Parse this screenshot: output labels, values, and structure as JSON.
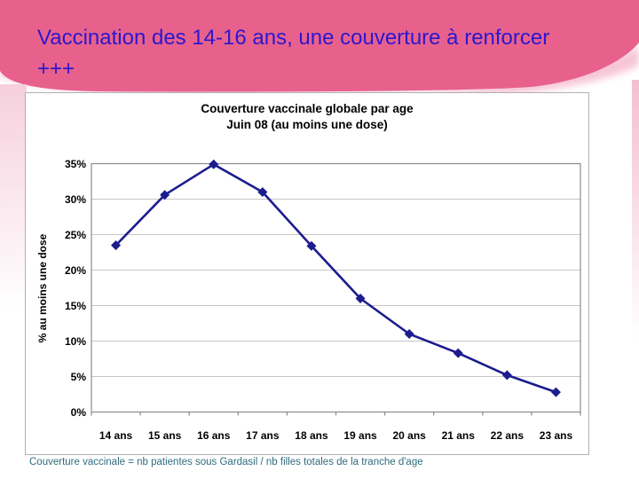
{
  "slide": {
    "title": "Vaccination des 14-16 ans, une couverture à renforcer +++",
    "caption": "Couverture vaccinale = nb patientes sous Gardasil / nb filles totales de la tranche d'age"
  },
  "colors": {
    "header_pink": "#e8618c",
    "header_pink_soft": "#f5bcd0",
    "title_blue": "#2c17ce",
    "line_navy": "#1c1c8f",
    "grid_gray": "#c6c6c6",
    "plot_border_gray": "#8c8c8c",
    "frame_border_gray": "#b0b0b0",
    "caption_teal": "#2e6b7d",
    "chart_text_black": "#000000"
  },
  "chart_data": {
    "type": "line",
    "title": "Couverture vaccinale globale par age",
    "subtitle": "Juin 08 (au moins une dose)",
    "categories": [
      "14 ans",
      "15 ans",
      "16 ans",
      "17 ans",
      "18 ans",
      "19 ans",
      "20 ans",
      "21 ans",
      "22 ans",
      "23 ans"
    ],
    "values": [
      23.5,
      30.6,
      34.9,
      31.0,
      23.4,
      16.0,
      11.0,
      8.3,
      5.2,
      2.8
    ],
    "xlabel": "",
    "ylabel": "% au moins une dose",
    "ylim": [
      0,
      35
    ],
    "ytick_step": 5,
    "ytick_labels": [
      "0%",
      "5%",
      "10%",
      "15%",
      "20%",
      "25%",
      "30%",
      "35%"
    ],
    "grid": true,
    "legend": "none",
    "marker": "diamond",
    "series_name": "couverture vaccinale"
  }
}
